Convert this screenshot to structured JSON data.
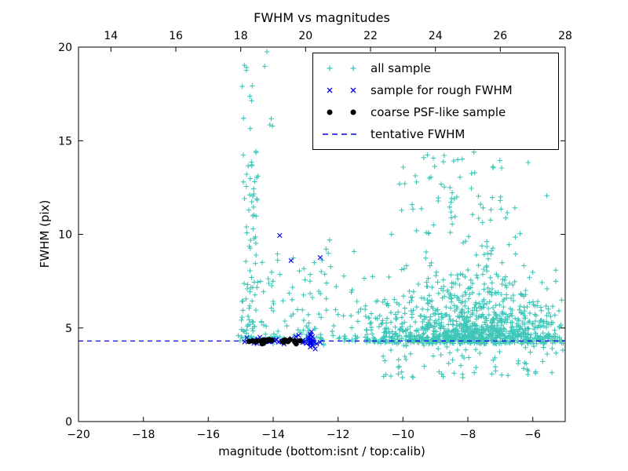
{
  "chart_data": {
    "type": "scatter",
    "title": "FWHM vs magnitudes",
    "xlabel": "magnitude (bottom:isnt / top:calib)",
    "ylabel": "FWHM (pix)",
    "grid": false,
    "legend_position": "upper right",
    "x_bottom": {
      "range": [
        -20,
        -5
      ],
      "ticks": [
        {
          "v": -20,
          "label": "−20"
        },
        {
          "v": -18,
          "label": "−18"
        },
        {
          "v": -16,
          "label": "−16"
        },
        {
          "v": -14,
          "label": "−14"
        },
        {
          "v": -12,
          "label": "−12"
        },
        {
          "v": -10,
          "label": "−10"
        },
        {
          "v": -8,
          "label": "−8"
        },
        {
          "v": -6,
          "label": "−6"
        }
      ]
    },
    "x_top": {
      "range": [
        13,
        28
      ],
      "ticks": [
        {
          "v": 14,
          "label": "14"
        },
        {
          "v": 16,
          "label": "16"
        },
        {
          "v": 18,
          "label": "18"
        },
        {
          "v": 20,
          "label": "20"
        },
        {
          "v": 22,
          "label": "22"
        },
        {
          "v": 24,
          "label": "24"
        },
        {
          "v": 26,
          "label": "26"
        },
        {
          "v": 28,
          "label": "28"
        }
      ]
    },
    "y": {
      "range": [
        0,
        20
      ],
      "ticks": [
        {
          "v": 0,
          "label": "0"
        },
        {
          "v": 5,
          "label": "5"
        },
        {
          "v": 10,
          "label": "10"
        },
        {
          "v": 15,
          "label": "15"
        },
        {
          "v": 20,
          "label": "20"
        }
      ]
    },
    "tentative_fwhm": 4.3,
    "colors": {
      "all": "#3ec6b8",
      "rough": "#0000ee",
      "coarse": "#000000",
      "line": "#0000ee"
    },
    "legend": [
      {
        "label": "all sample",
        "marker": "plus",
        "color_key": "all"
      },
      {
        "label": "sample for rough FWHM",
        "marker": "x",
        "color_key": "rough"
      },
      {
        "label": "coarse PSF-like sample",
        "marker": "dot",
        "color_key": "coarse"
      },
      {
        "label": "tentative FWHM",
        "marker": "dashed-line",
        "color_key": "line"
      }
    ],
    "seed": 7,
    "series": [
      {
        "name": "all sample",
        "marker": "plus",
        "color_key": "all",
        "clusters": [
          {
            "n": 650,
            "x": {
              "d": "n",
              "m": -7.7,
              "s": 1.25,
              "lo": -10.9,
              "hi": -5.05
            },
            "y": {
              "d": "hn",
              "b": 4.15,
              "s": 0.75,
              "hi": 8.5
            }
          },
          {
            "n": 260,
            "x": {
              "d": "n",
              "m": -8.0,
              "s": 1.35,
              "lo": -10.9,
              "hi": -5.2
            },
            "y": {
              "d": "hn",
              "b": 5.3,
              "s": 2.0,
              "hi": 12.5
            }
          },
          {
            "n": 70,
            "x": {
              "d": "n",
              "m": -8.4,
              "s": 1.2,
              "lo": -10.8,
              "hi": -5.6
            },
            "y": {
              "d": "u",
              "lo": 10,
              "hi": 15.8
            }
          },
          {
            "n": 70,
            "x": {
              "d": "u",
              "lo": -10.8,
              "hi": -5.1
            },
            "y": {
              "d": "u",
              "lo": 2.3,
              "hi": 4.1
            }
          },
          {
            "n": 60,
            "x": {
              "d": "n",
              "m": -14.68,
              "s": 0.12,
              "lo": -15.0,
              "hi": -14.3
            },
            "y": {
              "d": "u",
              "lo": 4.3,
              "hi": 14.5
            }
          },
          {
            "n": 14,
            "x": {
              "d": "n",
              "m": -14.5,
              "s": 0.28,
              "lo": -15.0,
              "hi": -13.8
            },
            "y": {
              "d": "u",
              "lo": 15.2,
              "hi": 20
            }
          },
          {
            "n": 100,
            "x": {
              "d": "u",
              "lo": -14.4,
              "hi": -10.9
            },
            "y": {
              "d": "hn",
              "b": 4.4,
              "s": 2.6,
              "hi": 13.5
            }
          },
          {
            "n": 170,
            "x": {
              "d": "u",
              "lo": -15.05,
              "hi": -5.1
            },
            "y": {
              "d": "n",
              "m": 4.35,
              "s": 0.12,
              "lo": 3.9,
              "hi": 4.8
            }
          },
          {
            "n": 25,
            "x": {
              "d": "n",
              "m": -14.85,
              "s": 0.15,
              "lo": -15.1,
              "hi": -14.5
            },
            "y": {
              "d": "hn",
              "b": 4.3,
              "s": 1.2,
              "hi": 8
            }
          },
          {
            "n": 60,
            "x": {
              "d": "u",
              "lo": -11.2,
              "hi": -9.8
            },
            "y": {
              "d": "hn",
              "b": 4.2,
              "s": 1.0,
              "hi": 8
            }
          },
          {
            "n": 25,
            "x": {
              "d": "u",
              "lo": -6.0,
              "hi": -5.05
            },
            "y": {
              "d": "u",
              "lo": 3.4,
              "hi": 6.6
            }
          }
        ]
      },
      {
        "name": "sample for rough FWHM",
        "marker": "x",
        "color_key": "rough",
        "clusters": [
          {
            "n": 38,
            "x": {
              "d": "u",
              "lo": -15.0,
              "hi": -12.6
            },
            "y": {
              "d": "n",
              "m": 4.33,
              "s": 0.1,
              "lo": 4.0,
              "hi": 4.7
            }
          },
          {
            "n": 14,
            "x": {
              "d": "n",
              "m": -12.82,
              "s": 0.15,
              "lo": -13.1,
              "hi": -12.5
            },
            "y": {
              "d": "n",
              "m": 4.35,
              "s": 0.22,
              "lo": 3.8,
              "hi": 4.95
            }
          }
        ],
        "points": [
          [
            -13.8,
            9.94
          ],
          [
            -13.45,
            8.6
          ],
          [
            -12.55,
            8.76
          ]
        ]
      },
      {
        "name": "coarse PSF-like sample",
        "marker": "dot",
        "color_key": "coarse",
        "clusters": [
          {
            "n": 26,
            "x": {
              "d": "u",
              "lo": -14.85,
              "hi": -13.15
            },
            "y": {
              "d": "n",
              "m": 4.3,
              "s": 0.06,
              "lo": 4.12,
              "hi": 4.48
            }
          }
        ]
      }
    ]
  }
}
